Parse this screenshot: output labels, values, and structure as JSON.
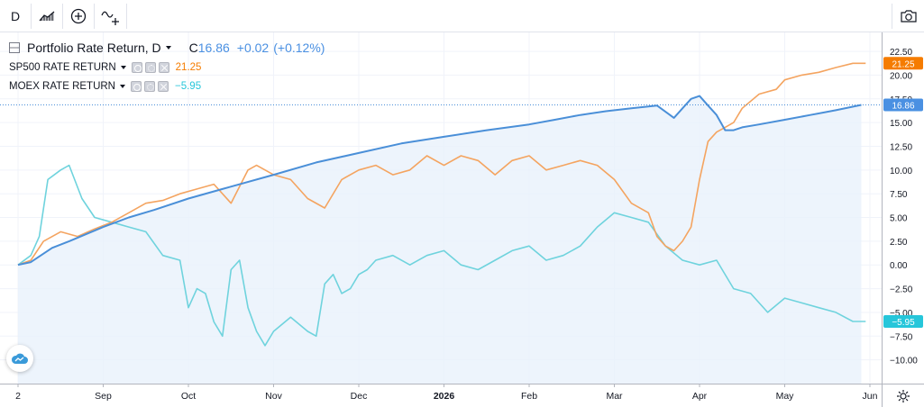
{
  "toolbar": {
    "interval_label": "D",
    "icons": [
      "bar-style-icon",
      "compare-plus-icon",
      "indicators-icon",
      "camera-icon"
    ]
  },
  "legend": {
    "main_title": "Portfolio Rate Return, D",
    "main_close_prefix": "C",
    "main_close": "16.86",
    "main_change": "+0.02",
    "main_change_pct": "(+0.12%)",
    "series": [
      {
        "label": "SP500 RATE RETURN",
        "value": "21.25"
      },
      {
        "label": "MOEX RATE RETURN",
        "value": "−5.95"
      }
    ]
  },
  "colors": {
    "portfolio": "#4a8fd8",
    "sp500": "#f4a460",
    "moex": "#6fd3dd",
    "sp500_badge": "#f57c00",
    "moex_badge": "#26c6da",
    "portfolio_badge": "#4a90e2"
  },
  "chart_data": {
    "type": "line",
    "x_ticks": [
      "2",
      "Sep",
      "Oct",
      "Nov",
      "Dec",
      "2026",
      "Feb",
      "Mar",
      "Apr",
      "May",
      "Jun"
    ],
    "y_ticks": [
      "22.50",
      "20.00",
      "17.50",
      "15.00",
      "12.50",
      "10.00",
      "7.50",
      "5.00",
      "2.50",
      "0.00",
      "−2.50",
      "−5.00",
      "−7.50",
      "−10.00"
    ],
    "ylim": [
      -12.5,
      24.5
    ],
    "x_domain": [
      0,
      10
    ],
    "last_values": {
      "sp500": "21.25",
      "portfolio": "16.86",
      "moex": "−5.95"
    },
    "series": [
      {
        "key": "portfolio",
        "x": [
          0,
          0.15,
          0.4,
          0.6,
          1,
          1.3,
          1.6,
          2,
          2.4,
          3,
          3.5,
          4,
          4.5,
          5,
          5.5,
          6,
          6.3,
          6.6,
          6.9,
          7.2,
          7.5,
          7.7,
          7.8,
          7.9,
          8,
          8.1,
          8.2,
          8.3,
          8.4,
          8.5,
          8.7,
          9,
          9.3,
          9.6,
          9.9
        ],
        "y": [
          0,
          0.3,
          1.8,
          2.5,
          4.0,
          5.0,
          5.8,
          7.0,
          8.0,
          9.5,
          10.8,
          11.8,
          12.8,
          13.5,
          14.2,
          14.8,
          15.3,
          15.8,
          16.2,
          16.5,
          16.8,
          15.5,
          16.5,
          17.5,
          17.8,
          16.8,
          15.8,
          14.2,
          14.2,
          14.5,
          14.8,
          15.3,
          15.8,
          16.3,
          16.86
        ]
      },
      {
        "key": "sp500",
        "x": [
          0,
          0.15,
          0.3,
          0.5,
          0.7,
          0.9,
          1.1,
          1.3,
          1.5,
          1.7,
          1.9,
          2.1,
          2.3,
          2.5,
          2.7,
          2.8,
          3.0,
          3.2,
          3.4,
          3.6,
          3.8,
          4.0,
          4.2,
          4.4,
          4.6,
          4.8,
          5.0,
          5.2,
          5.4,
          5.6,
          5.8,
          6.0,
          6.2,
          6.4,
          6.6,
          6.8,
          7.0,
          7.2,
          7.4,
          7.5,
          7.6,
          7.7,
          7.8,
          7.9,
          8.0,
          8.1,
          8.2,
          8.3,
          8.4,
          8.5,
          8.7,
          8.9,
          9.0,
          9.2,
          9.4,
          9.6,
          9.8,
          9.95
        ],
        "y": [
          0,
          0.5,
          2.5,
          3.5,
          3.0,
          3.8,
          4.5,
          5.5,
          6.5,
          6.8,
          7.5,
          8.0,
          8.5,
          6.5,
          10.0,
          10.5,
          9.5,
          9.0,
          7.0,
          6.0,
          9.0,
          10.0,
          10.5,
          9.5,
          10.0,
          11.5,
          10.5,
          11.5,
          11.0,
          9.5,
          11.0,
          11.5,
          10.0,
          10.5,
          11.0,
          10.5,
          9.0,
          6.5,
          5.5,
          3.0,
          2.0,
          1.5,
          2.5,
          4.0,
          9.0,
          13.0,
          14.0,
          14.5,
          15.0,
          16.5,
          18.0,
          18.5,
          19.5,
          20.0,
          20.3,
          20.8,
          21.25,
          21.25
        ]
      },
      {
        "key": "moex",
        "x": [
          0,
          0.15,
          0.25,
          0.35,
          0.5,
          0.6,
          0.75,
          0.9,
          1.1,
          1.3,
          1.5,
          1.7,
          1.9,
          2.0,
          2.1,
          2.2,
          2.3,
          2.4,
          2.5,
          2.6,
          2.7,
          2.8,
          2.9,
          3.0,
          3.2,
          3.4,
          3.5,
          3.6,
          3.7,
          3.8,
          3.9,
          4.0,
          4.1,
          4.2,
          4.4,
          4.6,
          4.8,
          5.0,
          5.2,
          5.4,
          5.6,
          5.8,
          6.0,
          6.2,
          6.4,
          6.6,
          6.8,
          7.0,
          7.2,
          7.4,
          7.6,
          7.8,
          8.0,
          8.2,
          8.4,
          8.6,
          8.8,
          9.0,
          9.2,
          9.4,
          9.6,
          9.8,
          9.95
        ],
        "y": [
          0,
          1.0,
          3.0,
          9.0,
          10.0,
          10.5,
          7.0,
          5.0,
          4.5,
          4.0,
          3.5,
          1.0,
          0.5,
          -4.5,
          -2.5,
          -3.0,
          -6.0,
          -7.5,
          -0.5,
          0.5,
          -4.5,
          -7.0,
          -8.5,
          -7.0,
          -5.5,
          -7.0,
          -7.5,
          -2.0,
          -1.0,
          -3.0,
          -2.5,
          -1.0,
          -0.5,
          0.5,
          1.0,
          0.0,
          1.0,
          1.5,
          0.0,
          -0.5,
          0.5,
          1.5,
          2.0,
          0.5,
          1.0,
          2.0,
          4.0,
          5.5,
          5.0,
          4.5,
          2.0,
          0.5,
          0.0,
          0.5,
          -2.5,
          -3.0,
          -5.0,
          -3.5,
          -4.0,
          -4.5,
          -5.0,
          -5.95,
          -5.95
        ]
      }
    ]
  }
}
